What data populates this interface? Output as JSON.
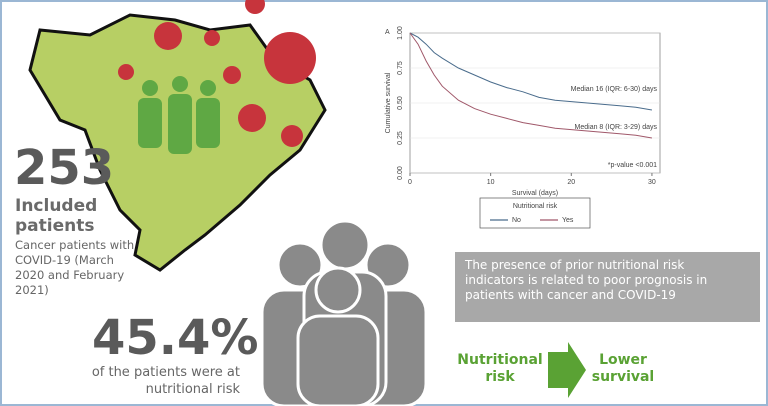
{
  "infographic": {
    "count": "253",
    "count_label": "Included patients",
    "count_description": "Cancer patients with COVID-19 (March 2020 and February 2021)",
    "percent": "45.4%",
    "percent_description": "of the patients were at nutritional risk",
    "conclusion": "The presence of prior nutritional risk indicators is related to poor prognosis in patients with cancer and COVID-19",
    "cause": "Nutritional risk",
    "effect": "Lower survival"
  },
  "chart_data": {
    "type": "line",
    "panel": "A",
    "y_label": "Cumulative survival",
    "x_label": "Survival (days)",
    "xlim": [
      0,
      31
    ],
    "ylim": [
      0,
      1
    ],
    "xticks": [
      0,
      10,
      20,
      30
    ],
    "yticks": [
      {
        "value": 0,
        "label": "0.00"
      },
      {
        "value": 0.25,
        "label": "0.25"
      },
      {
        "value": 0.5,
        "label": "0.50"
      },
      {
        "value": 0.75,
        "label": "0.75"
      },
      {
        "value": 1,
        "label": "1.00"
      }
    ],
    "grid": true,
    "annotations": [
      "Median 16 (IQR: 6-30) days",
      "Median 8 (IQR: 3-29) days",
      "*p-value <0.001"
    ],
    "legend_title": "Nutritional risk",
    "x": [
      0,
      1,
      2,
      3,
      4,
      6,
      8,
      10,
      12,
      14,
      16,
      18,
      20,
      22,
      24,
      26,
      28,
      30
    ],
    "series": [
      {
        "name": "No",
        "color": "#4a6c8c",
        "values": [
          1,
          0.97,
          0.92,
          0.86,
          0.82,
          0.75,
          0.7,
          0.65,
          0.61,
          0.58,
          0.54,
          0.52,
          0.51,
          0.5,
          0.49,
          0.48,
          0.47,
          0.45
        ]
      },
      {
        "name": "Yes",
        "color": "#a0586a",
        "values": [
          1,
          0.92,
          0.8,
          0.7,
          0.62,
          0.52,
          0.46,
          0.42,
          0.39,
          0.36,
          0.34,
          0.32,
          0.31,
          0.3,
          0.29,
          0.28,
          0.27,
          0.25
        ]
      }
    ]
  }
}
